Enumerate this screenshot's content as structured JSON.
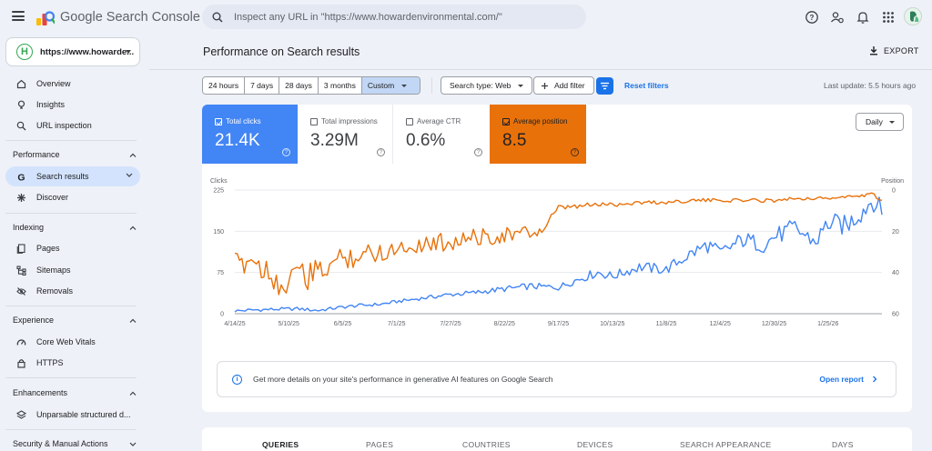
{
  "app": {
    "title": "Google Search Console"
  },
  "search": {
    "placeholder": "Inspect any URL in \"https://www.howardenvironmental.com/\""
  },
  "property": {
    "label": "https://www.howarde..."
  },
  "nav": {
    "overview": "Overview",
    "insights": "Insights",
    "url_inspection": "URL inspection",
    "performance_section": "Performance",
    "search_results": "Search results",
    "discover": "Discover",
    "indexing_section": "Indexing",
    "pages": "Pages",
    "sitemaps": "Sitemaps",
    "removals": "Removals",
    "experience_section": "Experience",
    "core_web_vitals": "Core Web Vitals",
    "https": "HTTPS",
    "enhancements_section": "Enhancements",
    "unparsable": "Unparsable structured d...",
    "security_section": "Security & Manual Actions"
  },
  "page": {
    "title": "Performance on Search results",
    "export_label": "EXPORT"
  },
  "filters": {
    "ranges": [
      "24 hours",
      "7 days",
      "28 days",
      "3 months",
      "Custom"
    ],
    "selected_range": "Custom",
    "search_type": "Search type: Web",
    "add_filter": "Add filter",
    "reset": "Reset filters",
    "last_update": "Last update: 5.5 hours ago"
  },
  "metrics": {
    "clicks": {
      "label": "Total clicks",
      "value": "21.4K",
      "selected": true,
      "color": "#4285f4"
    },
    "impressions": {
      "label": "Total impressions",
      "value": "3.29M",
      "selected": false
    },
    "ctr": {
      "label": "Average CTR",
      "value": "0.6%",
      "selected": false
    },
    "position": {
      "label": "Average position",
      "value": "8.5",
      "selected": true,
      "color": "#e8710a"
    }
  },
  "granularity": "Daily",
  "chart_data": {
    "type": "line",
    "y_left_label": "Clicks",
    "y_right_label": "Position",
    "y_left_ticks": [
      "225",
      "150",
      "75",
      "0"
    ],
    "y_left_range": [
      0,
      225
    ],
    "y_right_ticks": [
      "0",
      "20",
      "40",
      "60"
    ],
    "y_right_range": [
      0,
      60
    ],
    "y_right_reversed": true,
    "x_ticks": [
      "4/14/25",
      "5/10/25",
      "6/5/25",
      "7/1/25",
      "7/27/25",
      "8/22/25",
      "9/17/25",
      "10/13/25",
      "11/8/25",
      "12/4/25",
      "12/30/25",
      "1/25/26"
    ],
    "x_positions": [
      0,
      26,
      52,
      78,
      104,
      130,
      156,
      182,
      208,
      234,
      260,
      286
    ],
    "x_range": [
      0,
      312
    ],
    "grid": true,
    "series": [
      {
        "name": "Clicks",
        "axis": "left",
        "color": "#4285f4",
        "points": [
          [
            0,
            5
          ],
          [
            10,
            7
          ],
          [
            20,
            8
          ],
          [
            30,
            9
          ],
          [
            40,
            6
          ],
          [
            52,
            12
          ],
          [
            60,
            15
          ],
          [
            70,
            17
          ],
          [
            78,
            22
          ],
          [
            90,
            28
          ],
          [
            104,
            35
          ],
          [
            115,
            38
          ],
          [
            130,
            45
          ],
          [
            142,
            50
          ],
          [
            156,
            48
          ],
          [
            165,
            62
          ],
          [
            175,
            75
          ],
          [
            182,
            68
          ],
          [
            195,
            85
          ],
          [
            208,
            80
          ],
          [
            218,
            105
          ],
          [
            228,
            125
          ],
          [
            234,
            110
          ],
          [
            245,
            135
          ],
          [
            255,
            125
          ],
          [
            260,
            140
          ],
          [
            270,
            155
          ],
          [
            280,
            130
          ],
          [
            286,
            165
          ],
          [
            295,
            160
          ],
          [
            303,
            190
          ],
          [
            308,
            210
          ],
          [
            312,
            180
          ]
        ]
      },
      {
        "name": "Position",
        "axis": "right",
        "color": "#e8710a",
        "points": [
          [
            0,
            37
          ],
          [
            8,
            33
          ],
          [
            14,
            38
          ],
          [
            20,
            42
          ],
          [
            26,
            52
          ],
          [
            30,
            33
          ],
          [
            34,
            45
          ],
          [
            40,
            40
          ],
          [
            48,
            35
          ],
          [
            52,
            33
          ],
          [
            62,
            31
          ],
          [
            70,
            30
          ],
          [
            78,
            28
          ],
          [
            90,
            26
          ],
          [
            104,
            25
          ],
          [
            115,
            23
          ],
          [
            130,
            22
          ],
          [
            140,
            21
          ],
          [
            148,
            20
          ],
          [
            156,
            9
          ],
          [
            165,
            8
          ],
          [
            175,
            7
          ],
          [
            182,
            7
          ],
          [
            195,
            6
          ],
          [
            208,
            6
          ],
          [
            220,
            5
          ],
          [
            234,
            5
          ],
          [
            250,
            5
          ],
          [
            260,
            5
          ],
          [
            270,
            4
          ],
          [
            286,
            4
          ],
          [
            300,
            3
          ],
          [
            307,
            2
          ],
          [
            312,
            5
          ]
        ]
      }
    ]
  },
  "ai_banner": {
    "text": "Get more details on your site's performance in generative AI features on Google Search",
    "link": "Open report"
  },
  "tabs": [
    "QUERIES",
    "PAGES",
    "COUNTRIES",
    "DEVICES",
    "SEARCH APPEARANCE",
    "DAYS"
  ],
  "active_tab": "QUERIES"
}
